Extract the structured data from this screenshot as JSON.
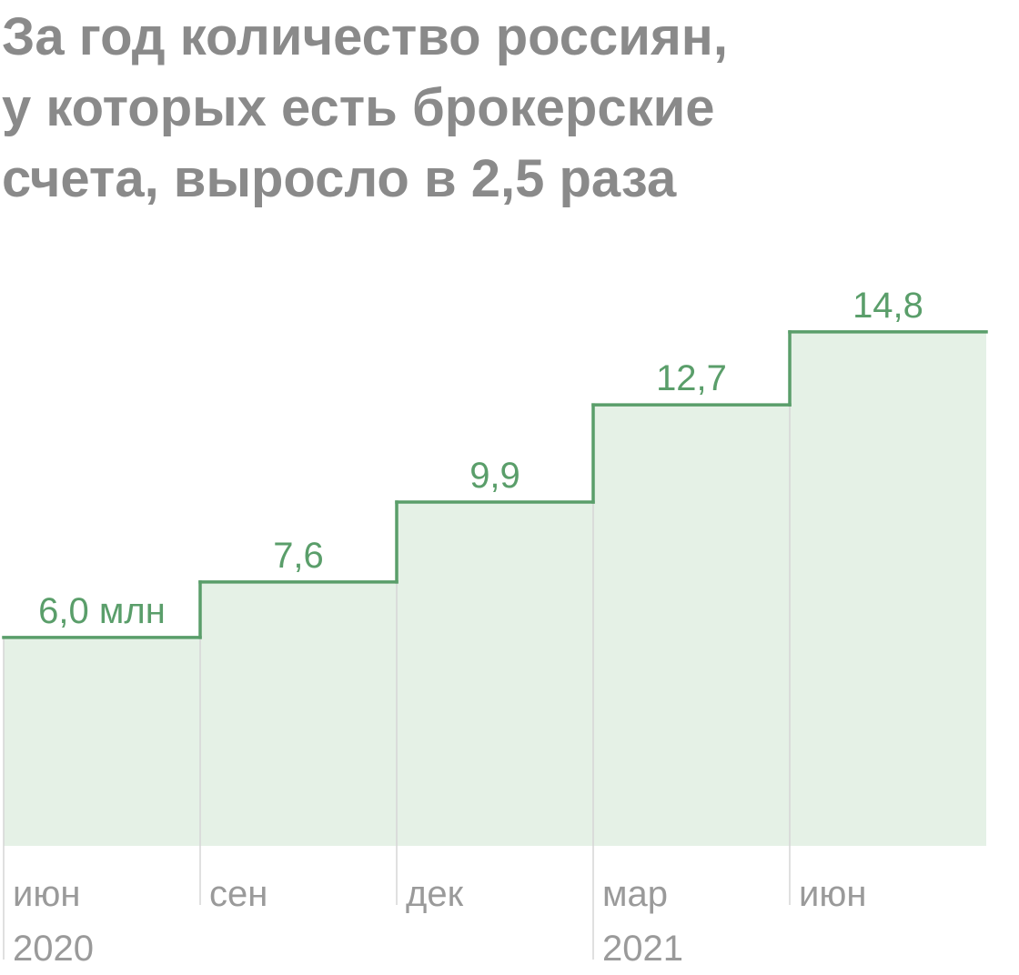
{
  "chart_data": {
    "type": "step",
    "title": [
      "За год количество россиян,",
      "у которых есть брокерские",
      "счета, выросло в 2,5 раза"
    ],
    "categories": [
      "июн",
      "сен",
      "дек",
      "мар",
      "июн"
    ],
    "years": [
      "2020",
      null,
      null,
      "2021",
      null
    ],
    "values": [
      6.0,
      7.6,
      9.9,
      12.7,
      14.8
    ],
    "value_labels": [
      "6,0 млн",
      "7,6",
      "9,9",
      "12,7",
      "14,8"
    ],
    "ylim": [
      0,
      16
    ],
    "color": "#5a9e6a",
    "fill_color": "#e5f1e6"
  }
}
